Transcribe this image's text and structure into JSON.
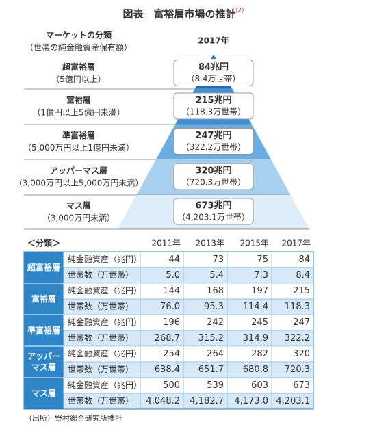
{
  "title": "図表　富裕層市場の推計",
  "title_note": "1)2)",
  "pyramid": {
    "header_label": "マーケットの分類",
    "header_sub": "（世帯の純金融資産保有額）",
    "year": "2017年",
    "levels": [
      {
        "name": "超富裕層",
        "range": "（5億円以上）",
        "amount": "84兆円",
        "households": "（8.4万世帯）"
      },
      {
        "name": "富裕層",
        "range": "（1億円以上5億円未満）",
        "amount": "215兆円",
        "households": "（118.3万世帯）"
      },
      {
        "name": "準富裕層",
        "range": "（5,000万円以上1億円未満）",
        "amount": "247兆円",
        "households": "（322.2万世帯）"
      },
      {
        "name": "アッパーマス層",
        "range": "（3,000万円以上5,000万円未満）",
        "amount": "320兆円",
        "households": "（720.3万世帯）"
      },
      {
        "name": "マス層",
        "range": "（3,000万円未満）",
        "amount": "673兆円",
        "households": "（4,203.1万世帯）"
      }
    ]
  },
  "table": {
    "corner": "＜分類＞",
    "years": [
      "2011年",
      "2013年",
      "2015年",
      "2017年"
    ],
    "groups": [
      {
        "name": "超富裕層",
        "rows": [
          {
            "label": "純金融資産（兆円）",
            "values": [
              "44",
              "73",
              "75",
              "84"
            ]
          },
          {
            "label": "世帯数（万世帯）",
            "values": [
              "5.0",
              "5.4",
              "7.3",
              "8.4"
            ]
          }
        ]
      },
      {
        "name": "富裕層",
        "rows": [
          {
            "label": "純金融資産（兆円）",
            "values": [
              "144",
              "168",
              "197",
              "215"
            ]
          },
          {
            "label": "世帯数（万世帯）",
            "values": [
              "76.0",
              "95.3",
              "114.4",
              "118.3"
            ]
          }
        ]
      },
      {
        "name": "準富裕層",
        "rows": [
          {
            "label": "純金融資産（兆円）",
            "values": [
              "196",
              "242",
              "245",
              "247"
            ]
          },
          {
            "label": "世帯数（万世帯）",
            "values": [
              "268.7",
              "315.2",
              "314.9",
              "322.2"
            ]
          }
        ]
      },
      {
        "name": "アッパー\nマス層",
        "rows": [
          {
            "label": "純金融資産（兆円）",
            "values": [
              "254",
              "264",
              "282",
              "320"
            ]
          },
          {
            "label": "世帯数（万世帯）",
            "values": [
              "638.4",
              "651.7",
              "680.8",
              "720.3"
            ]
          }
        ]
      },
      {
        "name": "マス層",
        "rows": [
          {
            "label": "純金融資産（兆円）",
            "values": [
              "500",
              "539",
              "603",
              "673"
            ]
          },
          {
            "label": "世帯数（万世帯）",
            "values": [
              "4,048.2",
              "4,182.7",
              "4,173.0",
              "4,203.1"
            ]
          }
        ]
      }
    ]
  },
  "source": "（出所）野村総合研究所推計"
}
